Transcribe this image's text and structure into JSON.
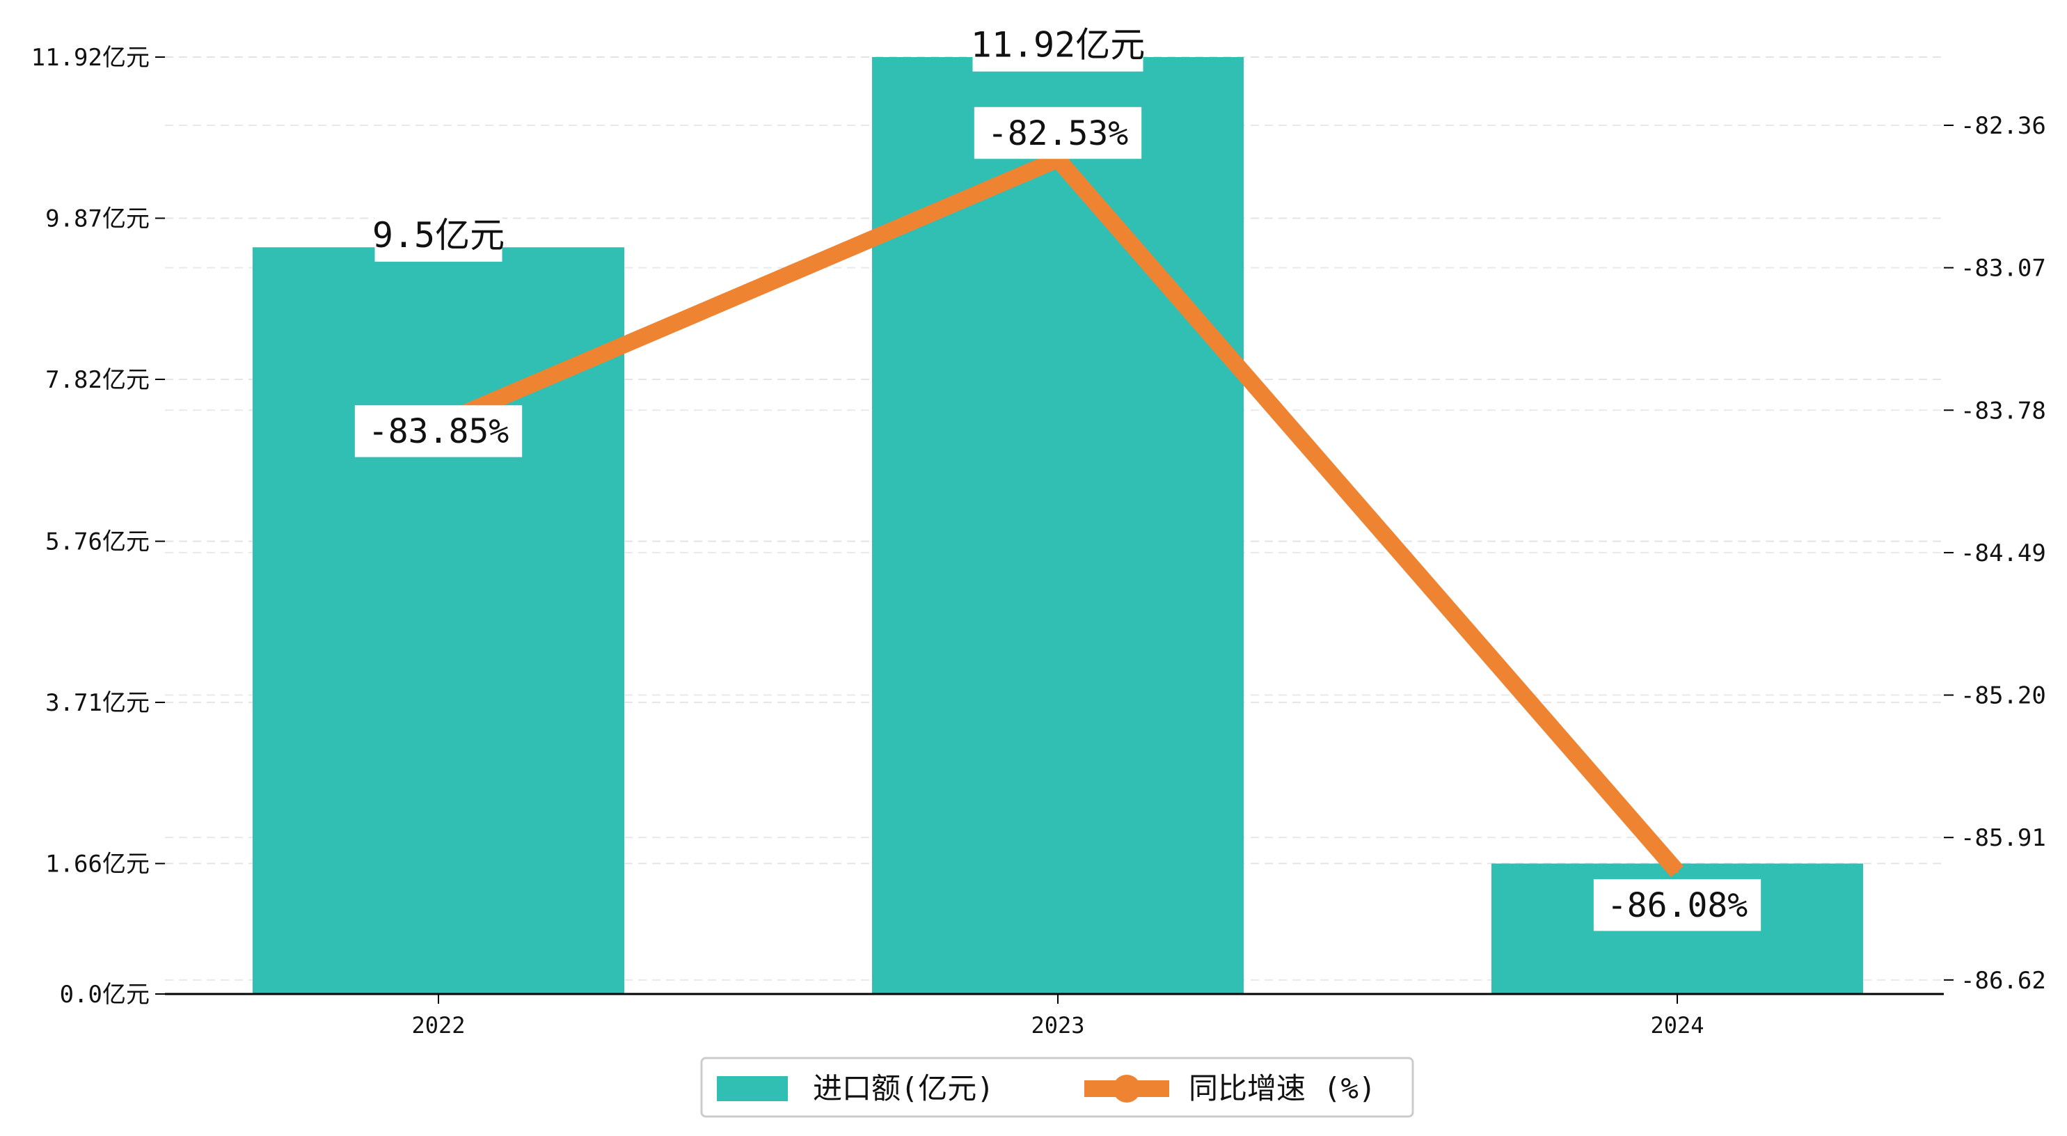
{
  "chart_data": {
    "type": "bar+line",
    "categories": [
      "2022",
      "2023",
      "2024"
    ],
    "series": [
      {
        "name": "进口额(亿元)",
        "type": "bar",
        "axis": "left",
        "values": [
          9.5,
          11.92,
          1.66
        ],
        "labels": [
          "9.5亿元",
          "11.92亿元",
          ""
        ],
        "color": "#31bfb3"
      },
      {
        "name": "同比增速 (%)",
        "type": "line",
        "axis": "right",
        "values": [
          -83.85,
          -82.53,
          -86.08
        ],
        "labels": [
          "-83.85%",
          "-82.53%",
          "-86.08%"
        ],
        "color": "#ee8431"
      }
    ],
    "left_axis": {
      "ticks": [
        0.0,
        1.66,
        3.71,
        5.76,
        7.82,
        9.87,
        11.92
      ],
      "tick_labels": [
        "0.0亿元",
        "1.66亿元",
        "3.71亿元",
        "5.76亿元",
        "7.82亿元",
        "9.87亿元",
        "11.92亿元"
      ],
      "ylim": [
        0,
        11.92
      ]
    },
    "right_axis": {
      "ticks": [
        -86.62,
        -85.91,
        -85.2,
        -84.49,
        -83.78,
        -83.07,
        -82.36
      ],
      "tick_labels": [
        "-86.62",
        "-85.91",
        "-85.20",
        "-84.49",
        "-83.78",
        "-83.07",
        "-82.36"
      ],
      "ylim": [
        -86.69,
        -82.02
      ]
    },
    "grid": true,
    "legend_position": "bottom-center"
  }
}
